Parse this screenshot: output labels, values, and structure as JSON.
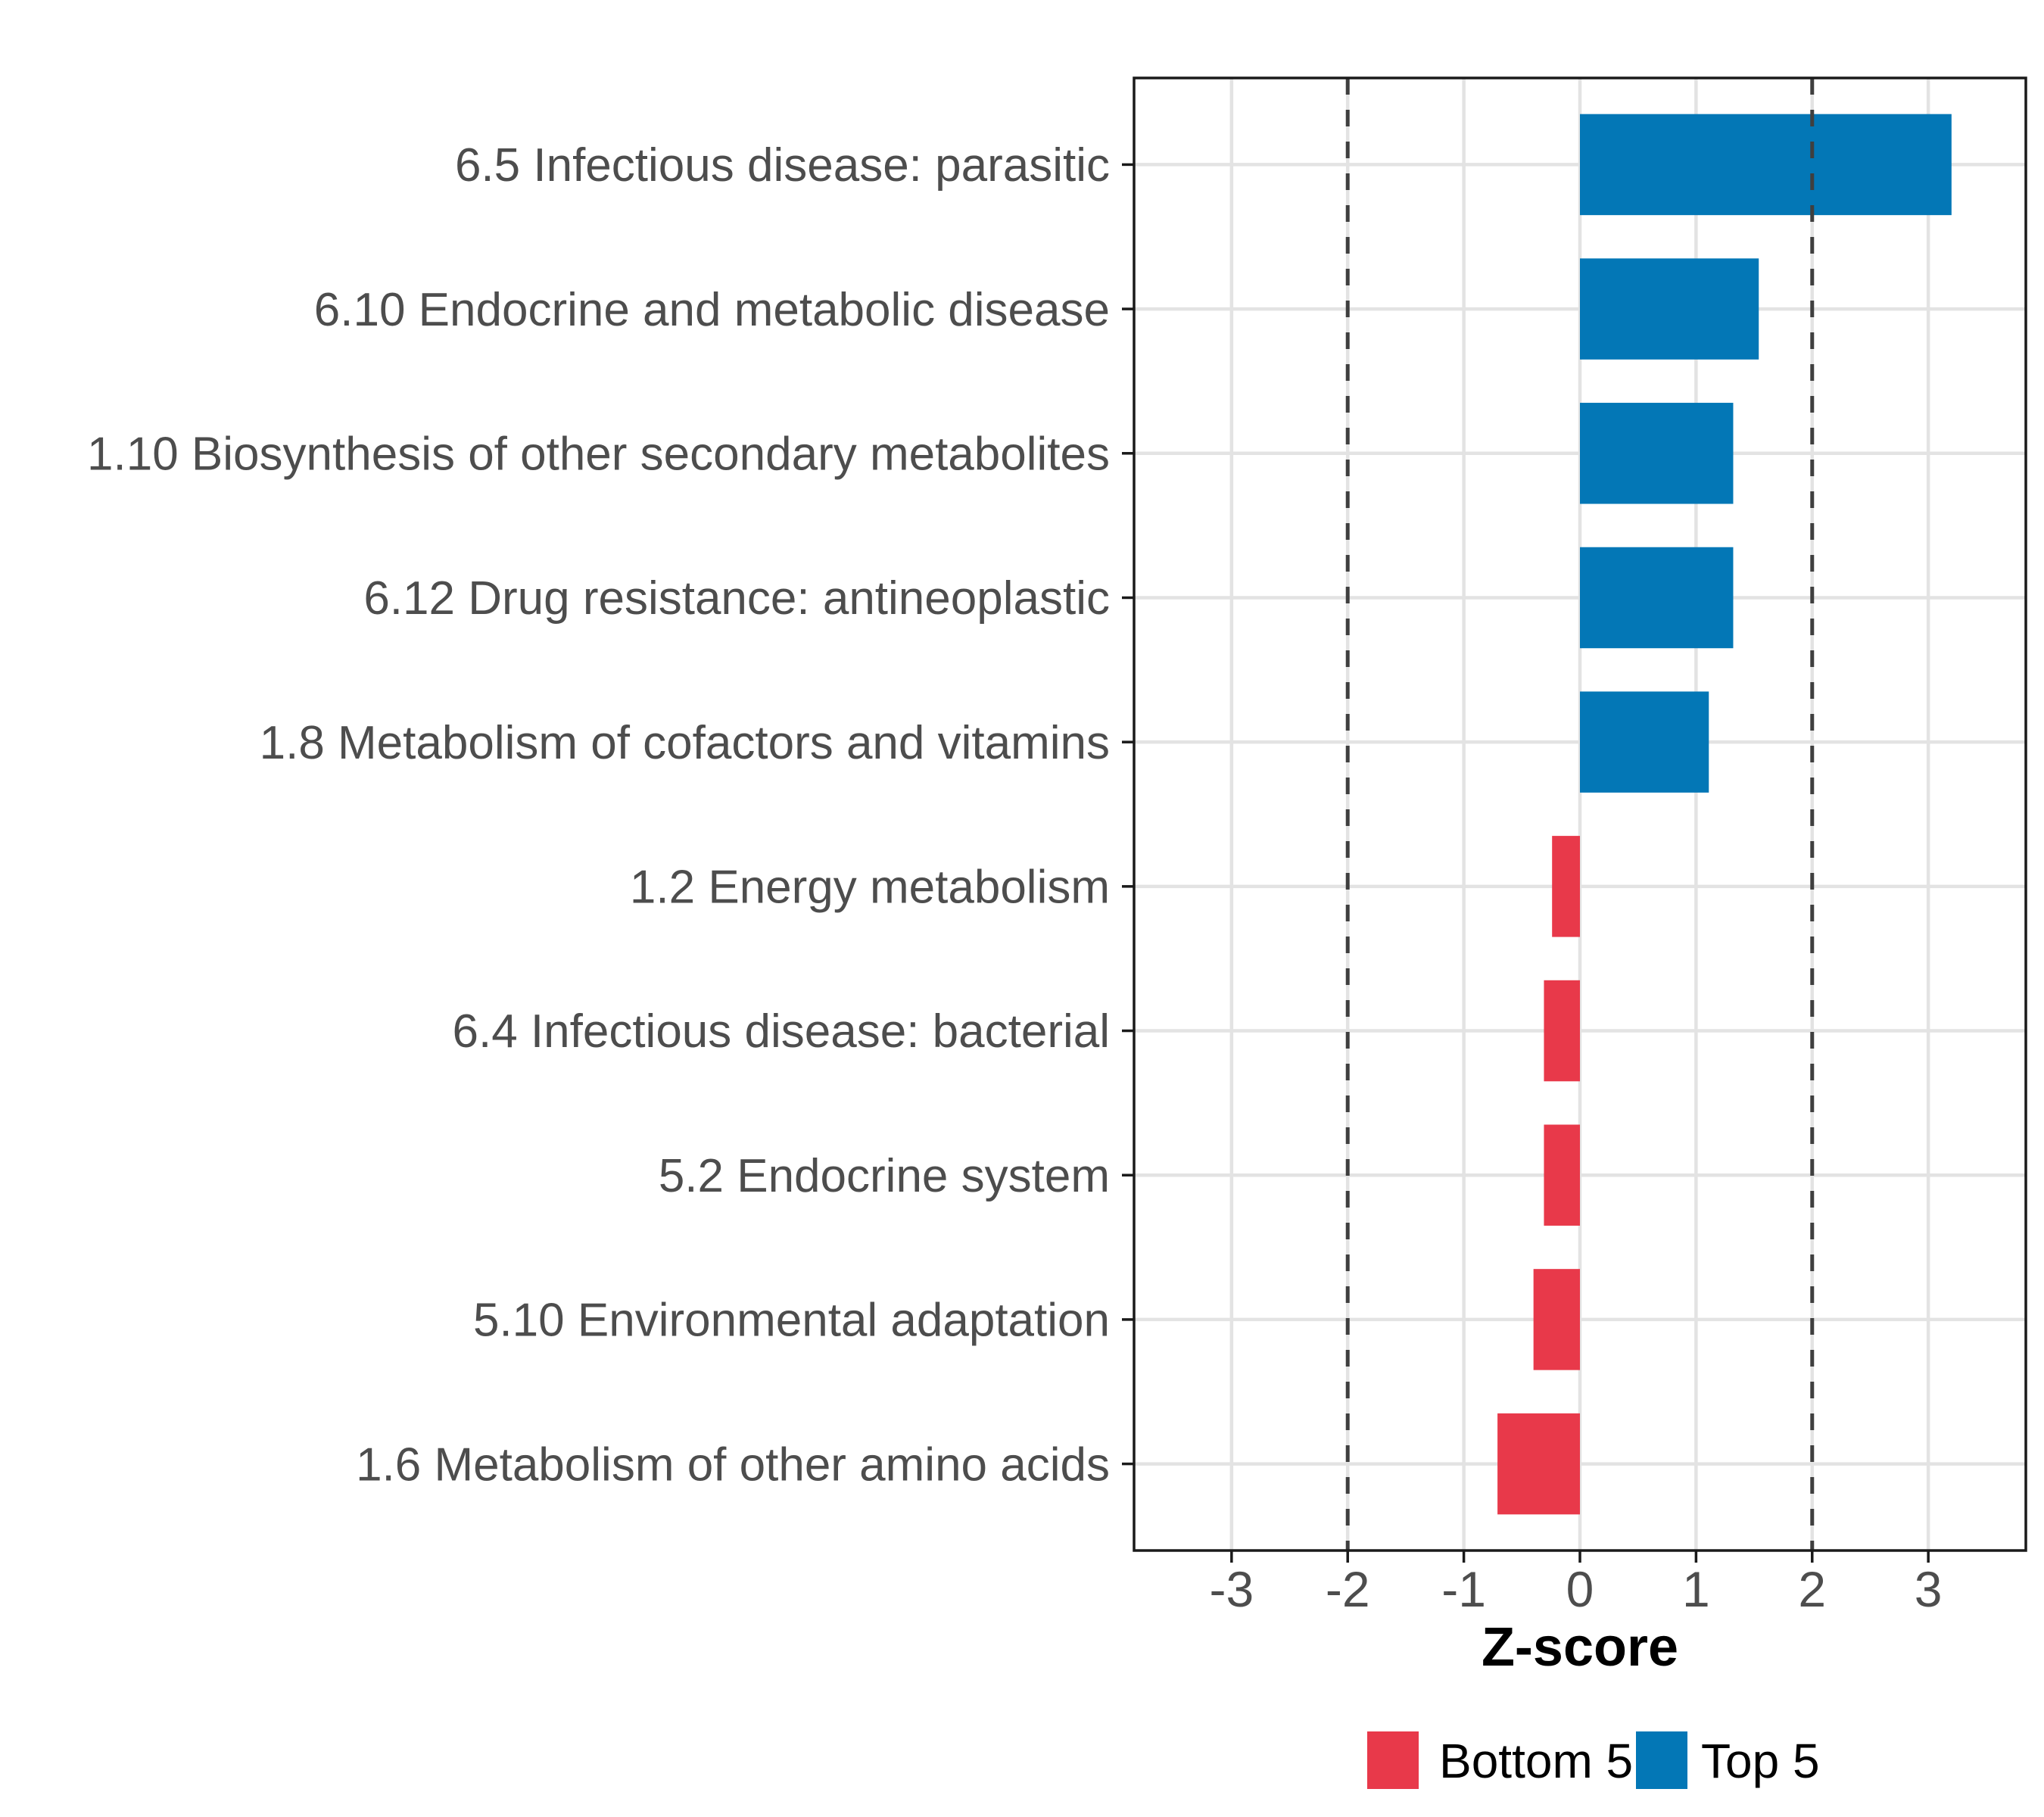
{
  "chart_data": {
    "type": "bar",
    "orientation": "horizontal",
    "xlabel": "Z-score",
    "categories": [
      "6.5 Infectious disease: parasitic",
      "6.10 Endocrine and metabolic disease",
      "1.10 Biosynthesis of other secondary metabolites",
      "6.12 Drug resistance: antineoplastic",
      "1.8 Metabolism of cofactors and vitamins",
      "1.2 Energy metabolism",
      "6.4 Infectious disease: bacterial",
      "5.2 Endocrine system",
      "5.10 Environmental adaptation",
      "1.6 Metabolism of other amino acids"
    ],
    "values": [
      3.2,
      1.54,
      1.32,
      1.32,
      1.11,
      -0.24,
      -0.31,
      -0.31,
      -0.4,
      -0.71
    ],
    "groups": [
      "Top 5",
      "Top 5",
      "Top 5",
      "Top 5",
      "Top 5",
      "Bottom 5",
      "Bottom 5",
      "Bottom 5",
      "Bottom 5",
      "Bottom 5"
    ],
    "x_ticks": [
      "-3",
      "-2",
      "-1",
      "0",
      "1",
      "2",
      "3"
    ],
    "x_tick_values": [
      -3,
      -2,
      -1,
      0,
      1,
      2,
      3
    ],
    "xlim": [
      -3.84,
      3.84
    ],
    "reference_lines_x": [
      -2,
      2
    ],
    "grid": "major on, white panel, black border",
    "legend_position": "bottom",
    "legend": [
      {
        "label": "Bottom 5",
        "color": "#E8394A"
      },
      {
        "label": "Top 5",
        "color": "#0377B6"
      }
    ],
    "colors": {
      "top5_blue": "#0377B6",
      "bottom5_red": "#E8394A",
      "gridline": "#E3E3E3",
      "dashed_line": "#3F3F3F",
      "panel_border": "#1A1A1A",
      "tick_label_gray": "#4D4D4D",
      "axis_title_black": "#000000"
    }
  }
}
